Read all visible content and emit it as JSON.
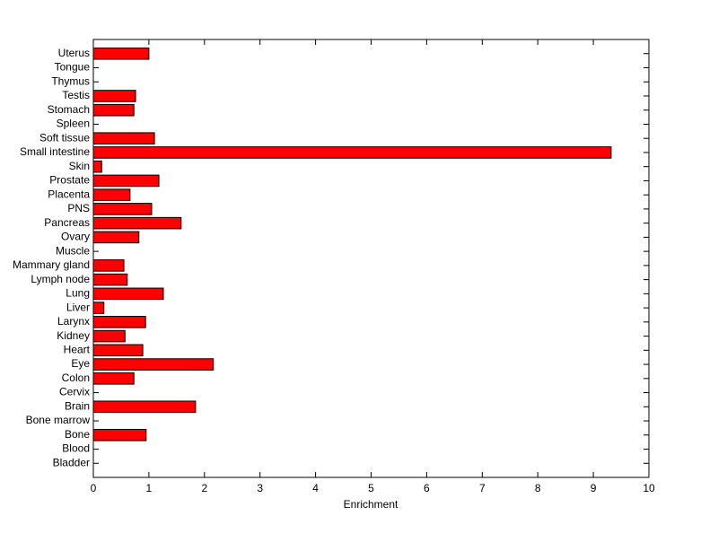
{
  "chart_data": {
    "type": "barh",
    "xlabel": "Enrichment",
    "categories": [
      "Bladder",
      "Blood",
      "Bone",
      "Bone marrow",
      "Brain",
      "Cervix",
      "Colon",
      "Eye",
      "Heart",
      "Kidney",
      "Larynx",
      "Liver",
      "Lung",
      "Lymph node",
      "Mammary gland",
      "Muscle",
      "Ovary",
      "Pancreas",
      "PNS",
      "Placenta",
      "Prostate",
      "Skin",
      "Small intestine",
      "Soft tissue",
      "Spleen",
      "Stomach",
      "Testis",
      "Thymus",
      "Tongue",
      "Uterus"
    ],
    "values": [
      0,
      0,
      0.95,
      0,
      1.84,
      0,
      0.73,
      2.16,
      0.89,
      0.57,
      0.94,
      0.19,
      1.26,
      0.61,
      0.55,
      0,
      0.82,
      1.58,
      1.05,
      0.66,
      1.18,
      0.15,
      9.32,
      1.1,
      0,
      0.73,
      0.76,
      0,
      0,
      1.0
    ],
    "color": "#ff0000",
    "xlim": [
      0,
      10
    ],
    "xticks": [
      0,
      1,
      2,
      3,
      4,
      5,
      6,
      7,
      8,
      9,
      10
    ]
  }
}
